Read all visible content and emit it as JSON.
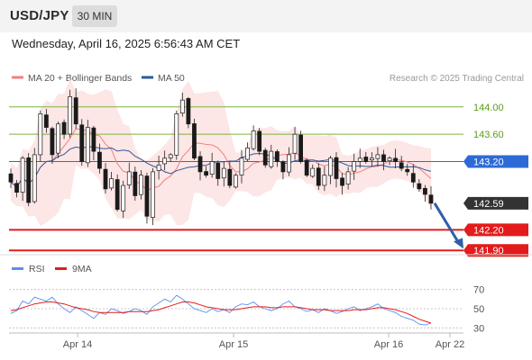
{
  "header": {
    "symbol": "USD/JPY",
    "timeframe": "30 MIN",
    "datetime": "Wednesday, April 16, 2025 6:56:43 AM CET"
  },
  "chart_data": {
    "type": "candlestick",
    "legend": [
      {
        "name": "MA 20 + Bollinger Bands",
        "color": "#f08080"
      },
      {
        "name": "MA 50",
        "color": "#2b5a9b"
      }
    ],
    "credit": "Research © 2025 Trading Central",
    "ylim": [
      141.85,
      144.3
    ],
    "x_ticks": [
      "Apr 14",
      "Apr 15",
      "Apr 16",
      "Apr 22"
    ],
    "levels": [
      {
        "value": 144.0,
        "label": "144.00",
        "type": "resistance",
        "color": "#7cb342"
      },
      {
        "value": 143.6,
        "label": "143.60",
        "type": "resistance",
        "color": "#7cb342"
      },
      {
        "value": 143.2,
        "label": "143.20",
        "type": "pivot",
        "color": "#2e6ad6"
      },
      {
        "value": 142.59,
        "label": "142.59",
        "type": "last",
        "color": "#333333"
      },
      {
        "value": 142.2,
        "label": "142.20",
        "type": "support",
        "color": "#e31b1b"
      },
      {
        "value": 141.9,
        "label": "141.90",
        "type": "support",
        "color": "#e31b1b"
      }
    ],
    "close_path": [
      142.9,
      142.75,
      143.25,
      142.6,
      143.3,
      143.9,
      143.7,
      143.3,
      143.75,
      143.6,
      144.15,
      143.75,
      143.2,
      143.7,
      143.35,
      143.1,
      142.8,
      142.95,
      142.5,
      142.85,
      143.05,
      142.7,
      143.0,
      142.4,
      143.05,
      143.15,
      143.25,
      143.3,
      143.9,
      144.1,
      143.75,
      143.25,
      143.05,
      143.0,
      143.2,
      142.95,
      143.1,
      142.85,
      143.0,
      143.25,
      143.4,
      143.65,
      143.35,
      143.15,
      143.35,
      143.2,
      143.05,
      143.3,
      143.6,
      143.2,
      143.0,
      143.1,
      142.85,
      143.0,
      143.25,
      142.95,
      142.85,
      143.05,
      143.2,
      143.25,
      143.2,
      143.25,
      143.3,
      143.2,
      143.25,
      143.2,
      143.1,
      143.05,
      142.9,
      142.8,
      142.72,
      142.59
    ],
    "rsi": {
      "ticks": [
        70,
        50,
        30
      ],
      "legend": [
        {
          "name": "RSI",
          "color": "#5b8def"
        },
        {
          "name": "9MA",
          "color": "#e31b1b"
        }
      ],
      "rsi_values": [
        45,
        48,
        58,
        55,
        62,
        60,
        58,
        62,
        55,
        50,
        46,
        52,
        48,
        44,
        40,
        46,
        44,
        50,
        48,
        45,
        47,
        50,
        48,
        44,
        52,
        56,
        60,
        57,
        64,
        60,
        55,
        50,
        48,
        46,
        50,
        47,
        49,
        46,
        52,
        55,
        54,
        57,
        52,
        50,
        48,
        50,
        55,
        58,
        52,
        50,
        47,
        49,
        46,
        50,
        48,
        45,
        47,
        50,
        52,
        48,
        50,
        52,
        55,
        50,
        48,
        46,
        42,
        40,
        38,
        34,
        33,
        35
      ],
      "ma_values": [
        48,
        49,
        51,
        53,
        55,
        56,
        57,
        57,
        56,
        55,
        53,
        51,
        50,
        49,
        47,
        46,
        46,
        46,
        46,
        46,
        47,
        47,
        47,
        47,
        48,
        49,
        51,
        53,
        55,
        57,
        57,
        56,
        54,
        52,
        51,
        50,
        49,
        49,
        49,
        50,
        51,
        52,
        52,
        52,
        51,
        51,
        52,
        52,
        52,
        51,
        50,
        49,
        49,
        49,
        48,
        48,
        48,
        48,
        49,
        49,
        49,
        50,
        51,
        51,
        50,
        49,
        47,
        45,
        42,
        39,
        37,
        35
      ]
    }
  }
}
